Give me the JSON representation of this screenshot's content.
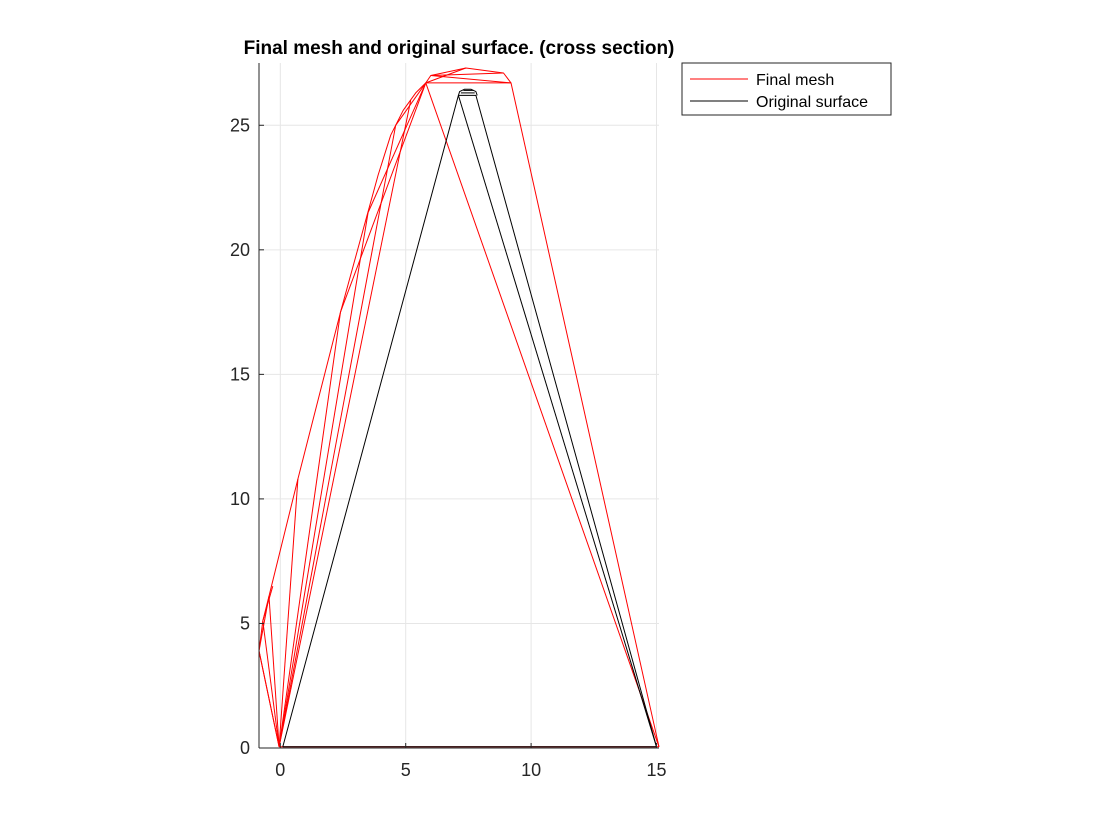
{
  "chart_data": {
    "type": "line",
    "title": "Final mesh and original surface. (cross section)",
    "xlabel": "",
    "ylabel": "",
    "xlim": [
      -0.85,
      15.1
    ],
    "ylim": [
      0,
      27.5
    ],
    "grid": true,
    "legend_position": "top-right-outside",
    "x_ticks": [
      0,
      5,
      10,
      15
    ],
    "x_tick_labels": [
      "0",
      "5",
      "10",
      "15"
    ],
    "y_ticks": [
      0,
      5,
      10,
      15,
      20,
      25
    ],
    "y_tick_labels": [
      "0",
      "5",
      "10",
      "15",
      "20",
      "25"
    ],
    "colors": {
      "final_mesh": "#ff0000",
      "original_surface": "#000000",
      "grid": "#e6e6e6",
      "axis": "#262626"
    },
    "series": [
      {
        "name": "Final mesh",
        "color": "#ff0000",
        "segments": [
          [
            [
              -0.05,
              0.05
            ],
            [
              15.1,
              0.05
            ]
          ],
          [
            [
              -0.05,
              0.05
            ],
            [
              -0.85,
              3.9
            ],
            [
              -0.7,
              5.1
            ],
            [
              -0.45,
              6.1
            ],
            [
              0.7,
              10.8
            ],
            [
              2.4,
              17.5
            ],
            [
              3.9,
              23.0
            ],
            [
              4.4,
              24.6
            ],
            [
              4.9,
              25.6
            ],
            [
              5.4,
              26.3
            ],
            [
              5.8,
              26.7
            ]
          ],
          [
            [
              5.8,
              26.7
            ],
            [
              9.2,
              26.7
            ],
            [
              15.1,
              0.05
            ]
          ],
          [
            [
              5.8,
              26.7
            ],
            [
              6.0,
              27.0
            ],
            [
              7.4,
              27.3
            ],
            [
              8.9,
              27.1
            ],
            [
              9.2,
              26.7
            ]
          ],
          [
            [
              5.8,
              26.7
            ],
            [
              7.4,
              27.3
            ]
          ],
          [
            [
              6.0,
              27.0
            ],
            [
              8.9,
              27.1
            ]
          ],
          [
            [
              6.0,
              27.0
            ],
            [
              9.2,
              26.7
            ]
          ],
          [
            [
              5.8,
              26.7
            ],
            [
              15.1,
              0.05
            ]
          ],
          [
            [
              -0.05,
              0.05
            ],
            [
              0.7,
              10.8
            ]
          ],
          [
            [
              -0.05,
              0.05
            ],
            [
              2.4,
              17.5
            ]
          ],
          [
            [
              -0.05,
              0.05
            ],
            [
              3.5,
              21.5
            ]
          ],
          [
            [
              -0.05,
              0.05
            ],
            [
              4.6,
              25.0
            ]
          ],
          [
            [
              -0.05,
              0.05
            ],
            [
              5.2,
              26.0
            ]
          ],
          [
            [
              -0.05,
              0.05
            ],
            [
              -0.45,
              6.1
            ]
          ],
          [
            [
              -0.05,
              0.05
            ],
            [
              -0.7,
              5.1
            ]
          ],
          [
            [
              -0.05,
              0.05
            ],
            [
              -0.85,
              3.9
            ]
          ],
          [
            [
              -0.85,
              3.9
            ],
            [
              -0.45,
              6.1
            ]
          ],
          [
            [
              -0.7,
              5.1
            ],
            [
              -0.3,
              6.5
            ]
          ],
          [
            [
              3.5,
              21.5
            ],
            [
              5.8,
              26.7
            ]
          ],
          [
            [
              2.4,
              17.5
            ],
            [
              5.8,
              26.7
            ]
          ],
          [
            [
              4.6,
              25.0
            ],
            [
              5.8,
              26.7
            ]
          ]
        ]
      },
      {
        "name": "Original surface",
        "color": "#000000",
        "segments": [
          [
            [
              0.1,
              0.05
            ],
            [
              15.0,
              0.05
            ]
          ],
          [
            [
              0.1,
              0.05
            ],
            [
              7.1,
              26.2
            ],
            [
              7.8,
              26.2
            ],
            [
              15.0,
              0.05
            ]
          ],
          [
            [
              7.1,
              26.2
            ],
            [
              7.15,
              26.35
            ],
            [
              7.35,
              26.45
            ],
            [
              7.6,
              26.45
            ],
            [
              7.8,
              26.35
            ],
            [
              7.85,
              26.2
            ]
          ],
          [
            [
              7.2,
              26.3
            ],
            [
              7.75,
              26.3
            ]
          ],
          [
            [
              7.3,
              26.4
            ],
            [
              7.7,
              26.4
            ]
          ],
          [
            [
              7.1,
              26.2
            ],
            [
              15.0,
              0.05
            ]
          ]
        ]
      }
    ]
  }
}
